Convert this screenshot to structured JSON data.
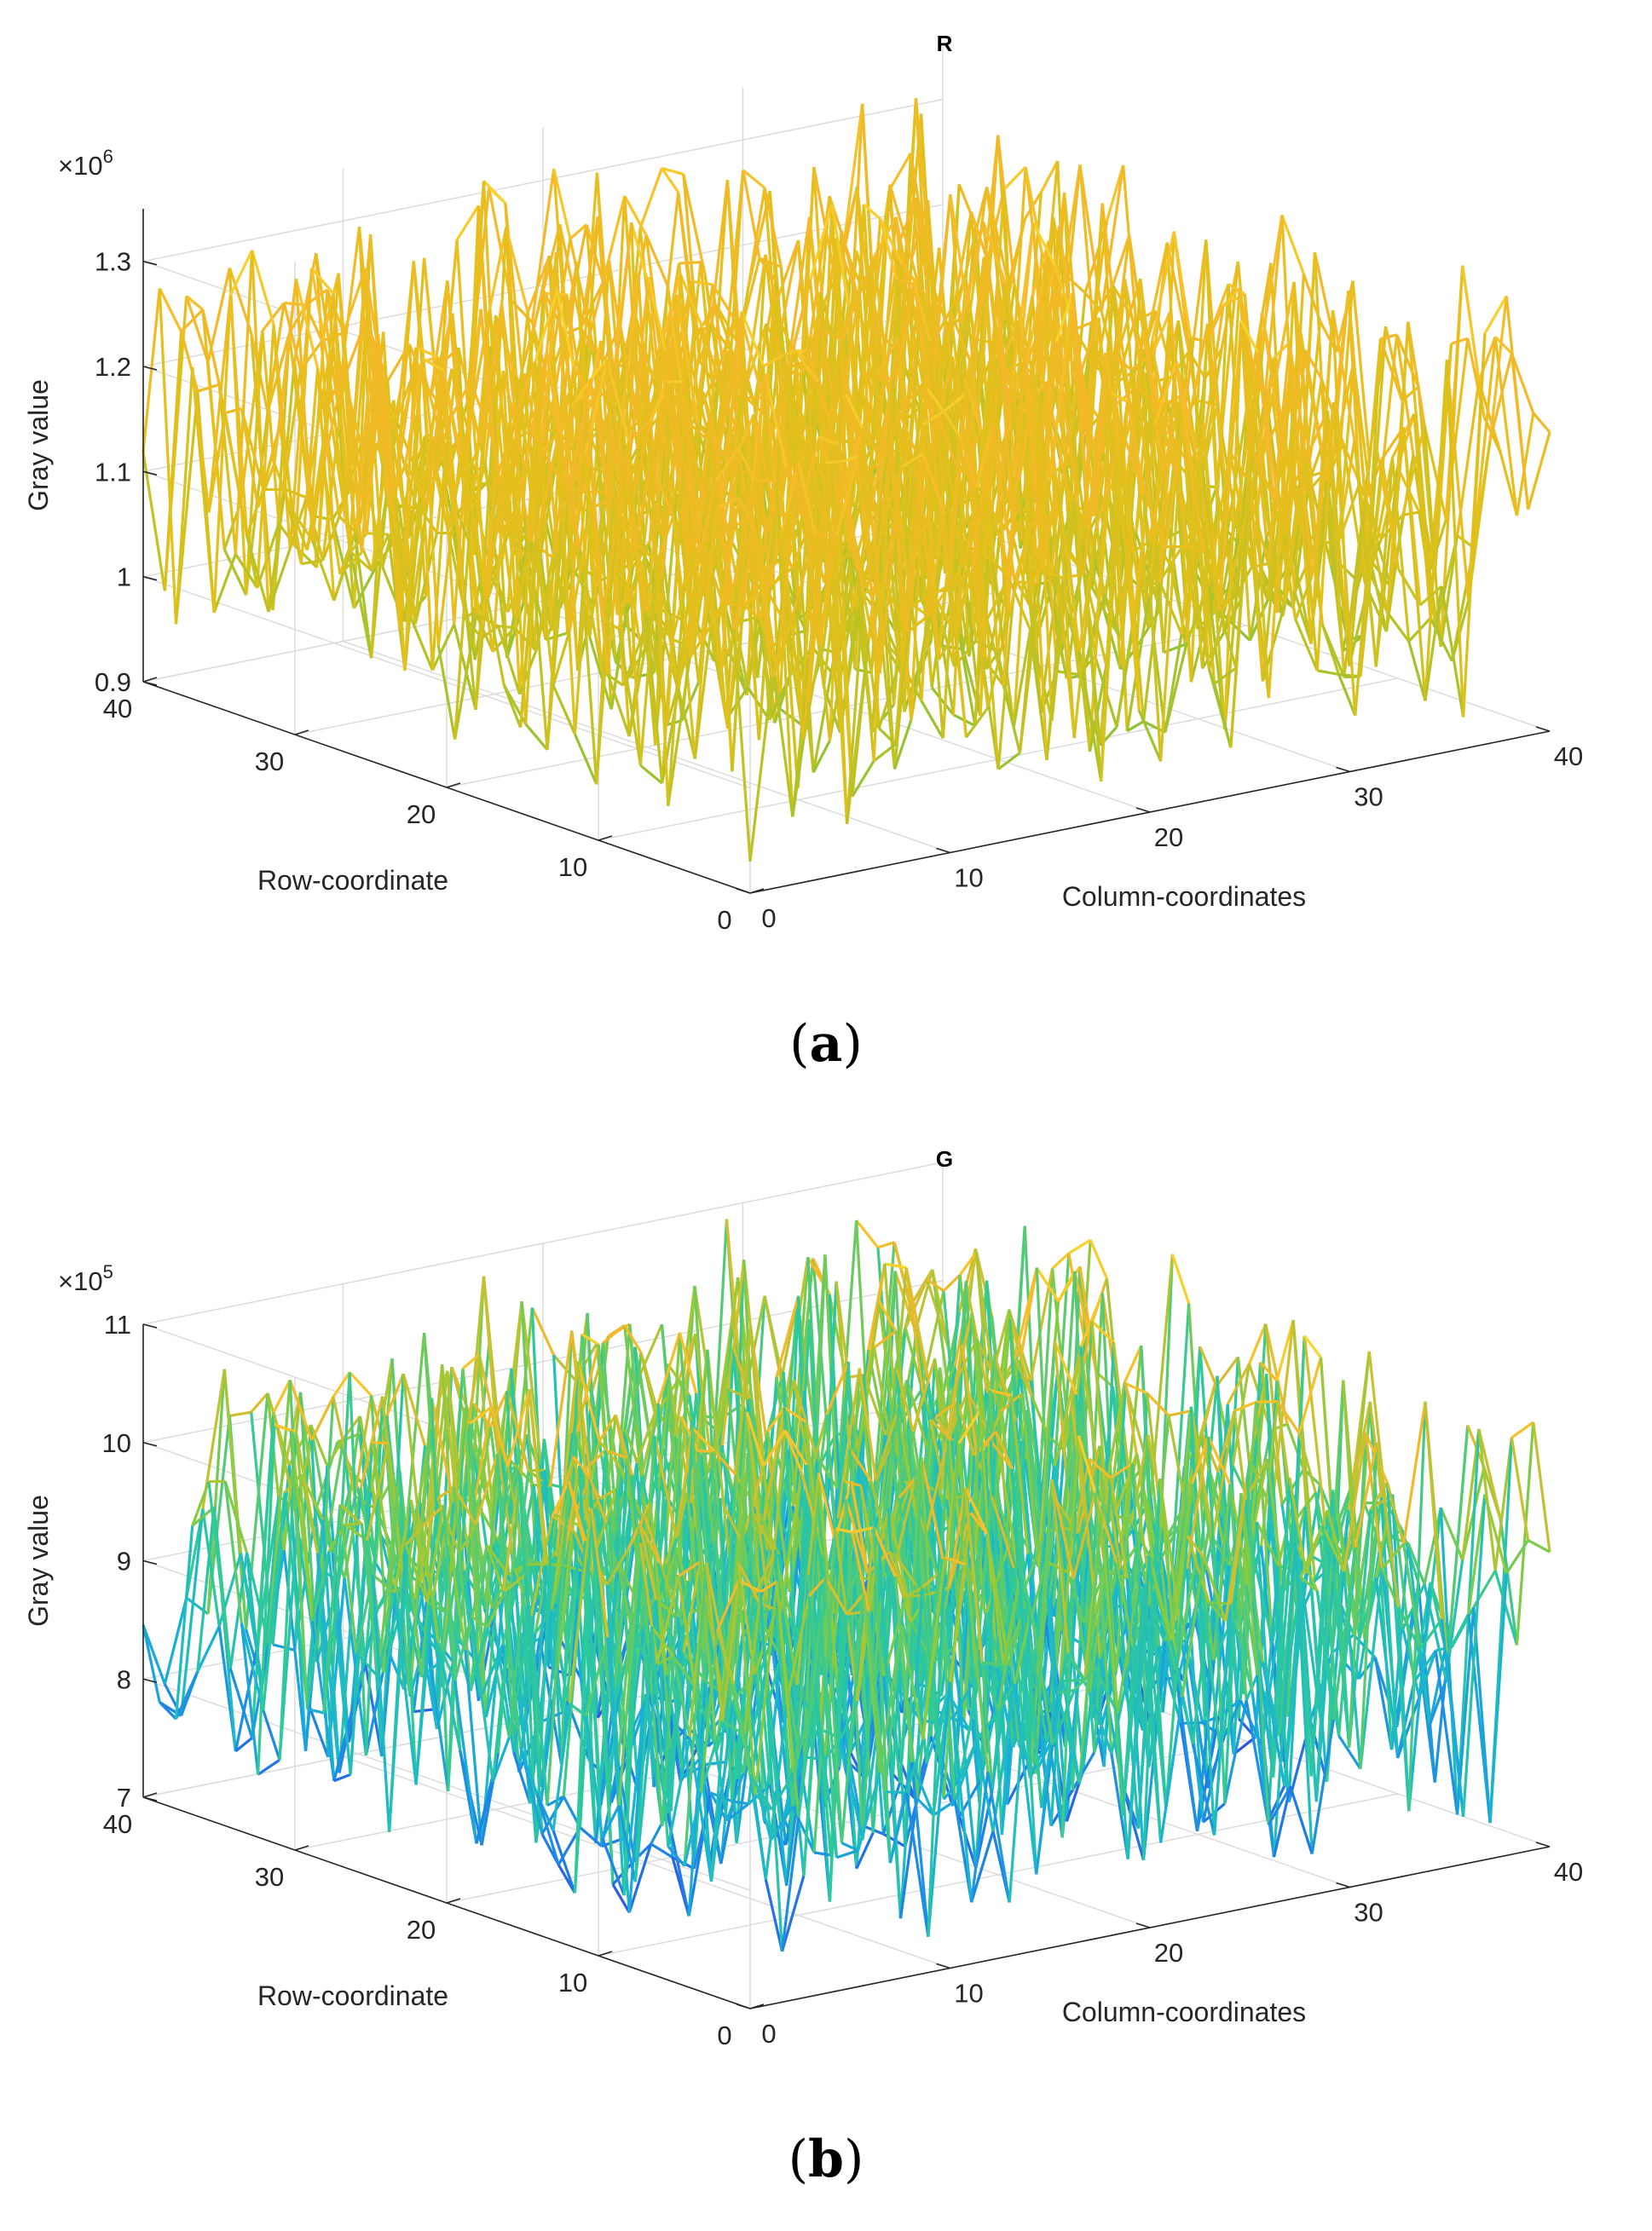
{
  "chart_data": [
    {
      "type": "surface-mesh",
      "title": "R",
      "xlabel": "Column-coordinates",
      "ylabel": "Row-coordinate",
      "zlabel": "Gray value",
      "exponent_prefix": "×10",
      "exponent_power": "6",
      "xlim": [
        0,
        40
      ],
      "ylim": [
        0,
        40
      ],
      "zlim": [
        0.9,
        1.35
      ],
      "xticks": [
        "0",
        "10",
        "20",
        "30",
        "40"
      ],
      "yticks": [
        "0",
        "10",
        "20",
        "30",
        "40"
      ],
      "zticks": [
        "0.9",
        "1",
        "1.1",
        "1.2",
        "1.3"
      ],
      "zvalues": [
        0.9,
        1.0,
        1.1,
        1.2,
        1.3
      ],
      "grid_size": 37,
      "z_mean": 1.12,
      "z_min": 0.93,
      "z_max": 1.34,
      "colormap": [
        "#7cc242",
        "#b9c224",
        "#e4c01b",
        "#f5b82a",
        "#f8e22a"
      ],
      "caption": "a"
    },
    {
      "type": "surface-mesh",
      "title": "G",
      "xlabel": "Column-coordinates",
      "ylabel": "Row-coordinate",
      "zlabel": "Gray value",
      "exponent_prefix": "×10",
      "exponent_power": "5",
      "xlim": [
        0,
        40
      ],
      "ylim": [
        0,
        40
      ],
      "zlim": [
        7,
        11
      ],
      "xticks": [
        "0",
        "10",
        "20",
        "30",
        "40"
      ],
      "yticks": [
        "0",
        "10",
        "20",
        "30",
        "40"
      ],
      "zticks": [
        "7",
        "8",
        "9",
        "10",
        "11"
      ],
      "zvalues": [
        7,
        8,
        9,
        10,
        11
      ],
      "grid_size": 37,
      "z_mean": 9.0,
      "z_min": 7.2,
      "z_max": 10.9,
      "colormap": [
        "#3b3bd4",
        "#1f7de8",
        "#19b4d4",
        "#2ec99a",
        "#8ccb3c",
        "#f5b82a",
        "#f8e22a"
      ],
      "caption": "b"
    }
  ]
}
